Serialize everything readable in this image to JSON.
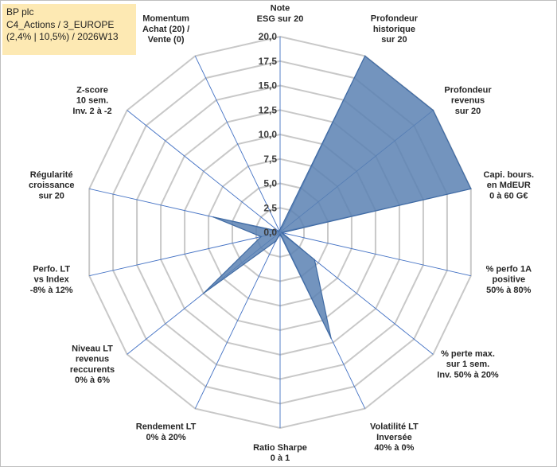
{
  "header": {
    "line1": "BP plc",
    "line2": "C4_Actions / 3_EUROPE",
    "line3": "(2,4% | 10,5%) / 2026W13"
  },
  "chart_data": {
    "type": "radar",
    "title": "BP plc",
    "rmin": 0,
    "rmax": 20,
    "ticks": [
      "0,0",
      "2,5",
      "5,0",
      "7,5",
      "10,0",
      "12,5",
      "15,0",
      "17,5",
      "20,0"
    ],
    "tick_values": [
      0,
      2.5,
      5,
      7.5,
      10,
      12.5,
      15,
      17.5,
      20
    ],
    "axes": [
      {
        "label": [
          "Note",
          "ESG sur 20"
        ],
        "value": 0.3
      },
      {
        "label": [
          "Profondeur",
          "historique",
          "sur 20"
        ],
        "value": 20
      },
      {
        "label": [
          "Profondeur",
          "revenus",
          "sur 20"
        ],
        "value": 20
      },
      {
        "label": [
          "Capi. bours.",
          "en MdEUR",
          "0 à 60 G€"
        ],
        "value": 20
      },
      {
        "label": [
          "% perfo 1A",
          "positive",
          "50% à 80%"
        ],
        "value": 0.2
      },
      {
        "label": [
          "% perte max.",
          "sur 1 sem.",
          "Inv. 50% à 20%"
        ],
        "value": 4.5
      },
      {
        "label": [
          "Volatilité LT",
          "Inversée",
          "40% à 0%"
        ],
        "value": 12.0
      },
      {
        "label": [
          "Ratio Sharpe",
          "0 à 1"
        ],
        "value": 0.2
      },
      {
        "label": [
          "Rendement LT",
          "0% à 20%"
        ],
        "value": 1.0
      },
      {
        "label": [
          "Niveau LT",
          "revenus",
          "reccurents",
          "0% à 6%"
        ],
        "value": 10.0
      },
      {
        "label": [
          "Perfo. LT",
          "vs Index",
          "-8% à 12%"
        ],
        "value": 2.0
      },
      {
        "label": [
          "Régularité",
          "croissance",
          "sur 20"
        ],
        "value": 7.0
      },
      {
        "label": [
          "Z-score",
          "10 sem.",
          "Inv. 2 à -2"
        ],
        "value": 0.2
      },
      {
        "label": [
          "Momentum",
          "Achat (20) /",
          "Vente (0)"
        ],
        "value": 0.2
      }
    ],
    "colors": {
      "fill": "#5b81b3",
      "stroke": "#3f6aa3",
      "spoke": "#4472c4",
      "grid": "#c8c8c8",
      "header_bg": "#fde9b3"
    }
  }
}
